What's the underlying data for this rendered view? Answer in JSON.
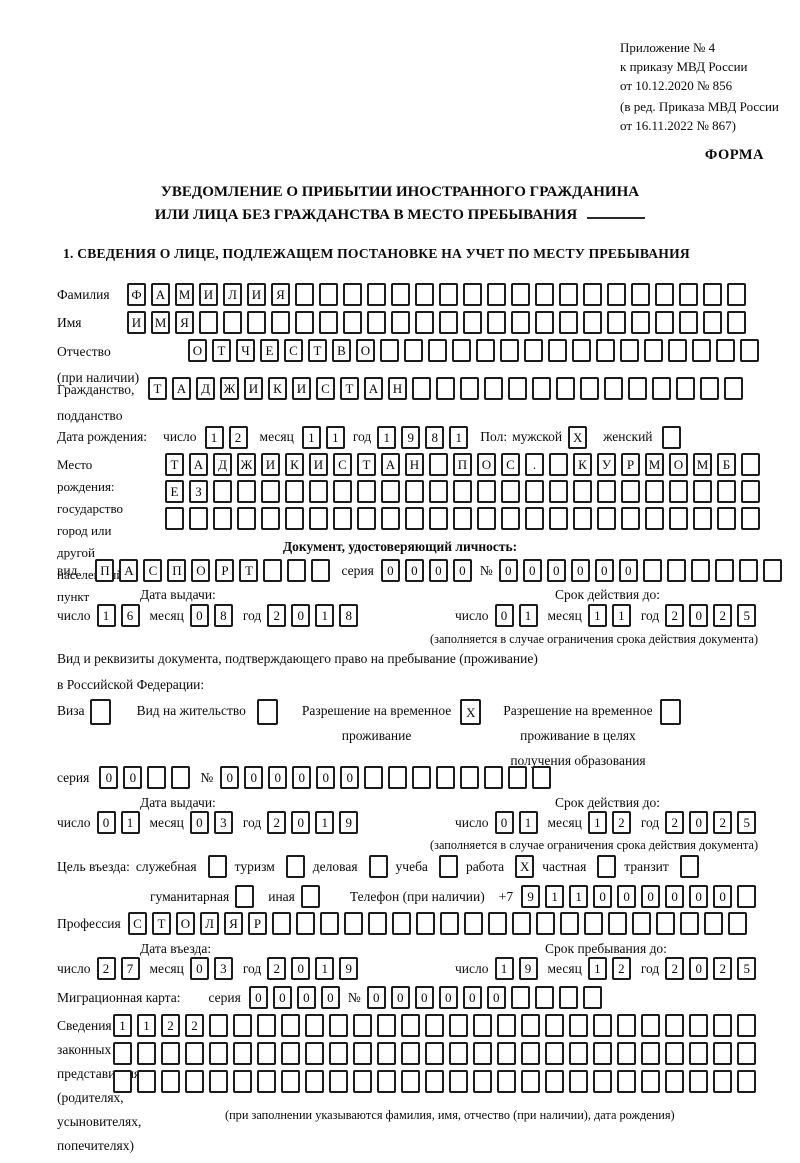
{
  "header": {
    "appendix_lines": [
      "Приложение № 4",
      "к приказу МВД России",
      "от 10.12.2020 № 856"
    ],
    "revision_lines": [
      "(в ред. Приказа МВД России",
      "от 16.11.2022 № 867)"
    ],
    "form_label": "ФОРМА"
  },
  "title": {
    "line1": "УВЕДОМЛЕНИЕ О ПРИБЫТИИ ИНОСТРАННОГО ГРАЖДАНИНА",
    "line2": "ИЛИ ЛИЦА БЕЗ ГРАЖДАНСТВА В МЕСТО ПРЕБЫВАНИЯ"
  },
  "section1": {
    "heading": "1. СВЕДЕНИЯ О ЛИЦЕ, ПОДЛЕЖАЩЕМ ПОСТАНОВКЕ НА УЧЕТ ПО МЕСТУ ПРЕБЫВАНИЯ"
  },
  "surname": {
    "label": "Фамилия",
    "cells": {
      "chars": "ФАМИЛИЯ",
      "total": 26
    }
  },
  "first_name": {
    "label": "Имя",
    "cells": {
      "chars": "ИМЯ",
      "total": 26
    }
  },
  "patronymic": {
    "label_lines": [
      "Отчество",
      "(при наличии)"
    ],
    "cells": {
      "chars": "ОТЧЕСТВО",
      "total": 24
    }
  },
  "citizenship": {
    "label_lines": [
      "Гражданство,",
      "подданство"
    ],
    "cells": {
      "chars": "ТАДЖИКИСТАН",
      "total": 25
    }
  },
  "birth_date": {
    "label": "Дата рождения:",
    "day_label": "число",
    "day": "12",
    "month_label": "месяц",
    "month": "11",
    "year_label": "год",
    "year": "1981",
    "sex_label": "Пол:",
    "male_label": "мужской",
    "male": {
      "chars": "X",
      "total": 1
    },
    "female_label": "женский",
    "female": {
      "chars": "",
      "total": 1
    }
  },
  "birth_place": {
    "label_lines": [
      "Место рождения:",
      "государство",
      "город или другой",
      "населенный пункт"
    ],
    "row1": {
      "chars": "ТАДЖИКИСТАН ПОС. КУРМОМБ",
      "total": 25
    },
    "row2": {
      "chars": "ЕЗ",
      "total": 25
    },
    "row3": {
      "chars": "",
      "total": 25
    }
  },
  "identity_doc": {
    "heading": "Документ, удостоверяющий личность:",
    "kind_label": "вид",
    "kind_cells": {
      "chars": "ПАСПОРТ",
      "total": 10
    },
    "series_label": "серия",
    "series_cells": {
      "chars": "0000",
      "total": 4
    },
    "number_label": "№",
    "number_cells": {
      "chars": "000000",
      "total": 12
    },
    "issue_label": "Дата выдачи:",
    "issue": {
      "day_label": "число",
      "day": "16",
      "month_label": "месяц",
      "month": "08",
      "year_label": "год",
      "year": "2018"
    },
    "expiry_label": "Срок действия до:",
    "expiry": {
      "day_label": "число",
      "day": "01",
      "month_label": "месяц",
      "month": "11",
      "year_label": "год",
      "year": "2025"
    },
    "footnote": "(заполняется в случае ограничения срока действия документа)"
  },
  "residence_doc": {
    "intro_line1": "Вид и реквизиты документа, подтверждающего право на пребывание (проживание)",
    "intro_line2": "в Российской Федерации:",
    "options": [
      {
        "lines": [
          "Виза"
        ],
        "checked": {
          "chars": "",
          "total": 1
        }
      },
      {
        "lines": [
          "Вид на жительство"
        ],
        "checked": {
          "chars": "",
          "total": 1
        }
      },
      {
        "lines": [
          "Разрешение на временное",
          "проживание"
        ],
        "checked": {
          "chars": "X",
          "total": 1
        }
      },
      {
        "lines": [
          "Разрешение на временное",
          "проживание в целях",
          "получения образования"
        ],
        "checked": {
          "chars": "",
          "total": 1
        }
      }
    ],
    "series_label": "серия",
    "series_cells": {
      "chars": "00",
      "total": 4
    },
    "number_label": "№",
    "number_cells": {
      "chars": "000000",
      "total": 14
    },
    "issue_label": "Дата выдачи:",
    "issue": {
      "day_label": "число",
      "day": "01",
      "month_label": "месяц",
      "month": "03",
      "year_label": "год",
      "year": "2019"
    },
    "expiry_label": "Срок действия до:",
    "expiry": {
      "day_label": "число",
      "day": "01",
      "month_label": "месяц",
      "month": "12",
      "year_label": "год",
      "year": "2025"
    },
    "footnote": "(заполняется в случае ограничения срока действия документа)"
  },
  "visit": {
    "purpose_label": "Цель въезда:",
    "purposes": [
      {
        "label": "служебная",
        "checked": {
          "chars": "",
          "total": 1
        }
      },
      {
        "label": "туризм",
        "checked": {
          "chars": "",
          "total": 1
        }
      },
      {
        "label": "деловая",
        "checked": {
          "chars": "",
          "total": 1
        }
      },
      {
        "label": "учеба",
        "checked": {
          "chars": "",
          "total": 1
        }
      },
      {
        "label": "работа",
        "checked": {
          "chars": "X",
          "total": 1
        }
      },
      {
        "label": "частная",
        "checked": {
          "chars": "",
          "total": 1
        }
      },
      {
        "label": "транзит",
        "checked": {
          "chars": "",
          "total": 1
        }
      }
    ],
    "purposes_row2": [
      {
        "label": "гуманитарная",
        "checked": {
          "chars": "",
          "total": 1
        }
      },
      {
        "label": "иная",
        "checked": {
          "chars": "",
          "total": 1
        }
      }
    ],
    "phone_label": "Телефон (при наличии)",
    "phone_prefix": "+7",
    "phone_cells": {
      "chars": "911000000",
      "total": 10
    },
    "profession_label": "Профессия",
    "profession_cells": {
      "chars": "СТОЛЯР",
      "total": 26
    }
  },
  "entry": {
    "entry_label": "Дата въезда:",
    "entry_date": {
      "day_label": "число",
      "day": "27",
      "month_label": "месяц",
      "month": "03",
      "year_label": "год",
      "year": "2019"
    },
    "stay_label": "Срок пребывания до:",
    "stay_date": {
      "day_label": "число",
      "day": "19",
      "month_label": "месяц",
      "month": "12",
      "year_label": "год",
      "year": "2025"
    }
  },
  "migration_card": {
    "label": "Миграционная карта:",
    "series_label": "серия",
    "series_cells": {
      "chars": "0000",
      "total": 4
    },
    "number_label": "№",
    "number_cells": {
      "chars": "000000",
      "total": 10
    }
  },
  "representatives": {
    "label_lines": [
      "Сведения о",
      "законных",
      "представителях",
      "(родителях,",
      "усыновителях,",
      "попечителях)"
    ],
    "row1": {
      "chars": "1122",
      "total": 27
    },
    "row2": {
      "chars": "",
      "total": 27
    },
    "row3": {
      "chars": "",
      "total": 27
    },
    "footnote": "(при заполнении указываются фамилия, имя, отчество (при наличии), дата рождения)"
  }
}
